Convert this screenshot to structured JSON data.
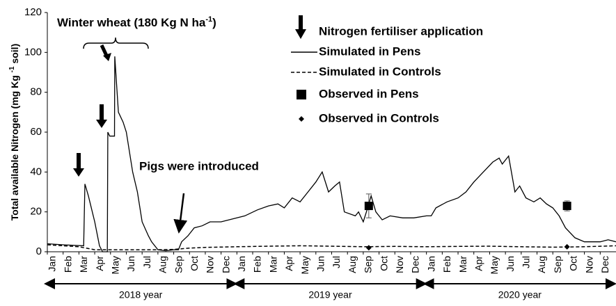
{
  "chart_data": {
    "type": "line",
    "annotations": {
      "crop": {
        "text": "Winter wheat (180 Kg N ha",
        "sup": "-1",
        "tail": ")"
      },
      "pigs": "Pigs were introduced"
    },
    "ylabel": {
      "text": "Total available  Nitrogen (mg Kg ",
      "sup": "-1",
      "tail": " soil)"
    },
    "fertiliser_legend": "Nitrogen fertiliser application",
    "categories": [
      "Jan",
      "Feb",
      "Mar",
      "Apr",
      "May",
      "Jun",
      "Jul",
      "Aug",
      "Sep",
      "Oct",
      "Nov",
      "Dec",
      "Jan",
      "Feb",
      "Mar",
      "Apr",
      "May",
      "Jun",
      "Jul",
      "Aug",
      "Sep",
      "Oct",
      "Nov",
      "Dec",
      "Jan",
      "Feb",
      "Mar",
      "Apr",
      "May",
      "Jun",
      "Jul",
      "Aug",
      "Sep",
      "Oct",
      "Nov",
      "Dec"
    ],
    "years": [
      "2018 year",
      "2019 year",
      "2020 year"
    ],
    "xlim": [
      0,
      36
    ],
    "ylim": [
      0,
      120
    ],
    "yticks": [
      0,
      20,
      40,
      60,
      80,
      100,
      120
    ],
    "series": [
      {
        "name": "Simulated in Pens",
        "color": "#000000",
        "x": [
          0,
          1,
          2.3,
          2.38,
          2.6,
          3.0,
          3.3,
          3.5,
          3.8,
          3.83,
          3.95,
          4.25,
          4.27,
          4.5,
          4.8,
          5.0,
          5.4,
          5.7,
          6.0,
          6.4,
          6.6,
          7.0,
          7.5,
          8.0,
          8.3,
          8.5,
          8.9,
          9.3,
          9.8,
          10.3,
          11,
          12,
          12.5,
          13.3,
          14,
          14.6,
          15,
          15.5,
          16,
          16.5,
          17,
          17.4,
          17.8,
          18.2,
          18.5,
          18.8,
          19.5,
          19.7,
          20,
          20.2,
          20.5,
          20.8,
          21.2,
          21.7,
          22.5,
          23.2,
          24,
          24.3,
          24.6,
          25.3,
          26,
          26.5,
          27,
          27.6,
          28.2,
          28.6,
          28.8,
          29.2,
          29.6,
          29.9,
          30.3,
          30.8,
          31.2,
          31.6,
          32,
          32.4,
          32.8,
          33.4,
          34,
          35,
          35.5,
          36
        ],
        "values": [
          4,
          3.5,
          3,
          34,
          28,
          15,
          3,
          0,
          0,
          60,
          58,
          58,
          98,
          70,
          65,
          60,
          40,
          30,
          15,
          8,
          5,
          1,
          0.5,
          1,
          1,
          5,
          8,
          12,
          13,
          15,
          15,
          17,
          18,
          21,
          23,
          24,
          22,
          27,
          25,
          30,
          35,
          40,
          30,
          33,
          35,
          20,
          18,
          20,
          15,
          20,
          28,
          20,
          16,
          18,
          17,
          17,
          18,
          18,
          22,
          25,
          27,
          30,
          35,
          40,
          45,
          47,
          44,
          48,
          30,
          33,
          27,
          25,
          27,
          24,
          22,
          18,
          12,
          7,
          5,
          5,
          6,
          5
        ]
      },
      {
        "name": "Simulated in Controls",
        "color": "#000000",
        "x": [
          0,
          1,
          2,
          3,
          5,
          7,
          8,
          9,
          10,
          12,
          14,
          16,
          18,
          20,
          22,
          24,
          26,
          28,
          30,
          32,
          34,
          36
        ],
        "values": [
          3.5,
          3,
          2.5,
          1,
          1,
          1,
          1.2,
          1.8,
          2.2,
          2.5,
          2.8,
          3,
          2.8,
          2.5,
          2.7,
          2.5,
          2.7,
          2.8,
          2.5,
          2.3,
          2.5,
          3
        ]
      },
      {
        "name": "Observed in Pens",
        "color": "#000000",
        "x": [
          20.35,
          32.9
        ],
        "values": [
          23,
          23
        ],
        "errors": [
          6,
          2.5
        ]
      },
      {
        "name": "Observed in Controls",
        "color": "#000000",
        "x": [
          20.35,
          32.9
        ],
        "values": [
          2,
          2.5
        ]
      }
    ]
  }
}
